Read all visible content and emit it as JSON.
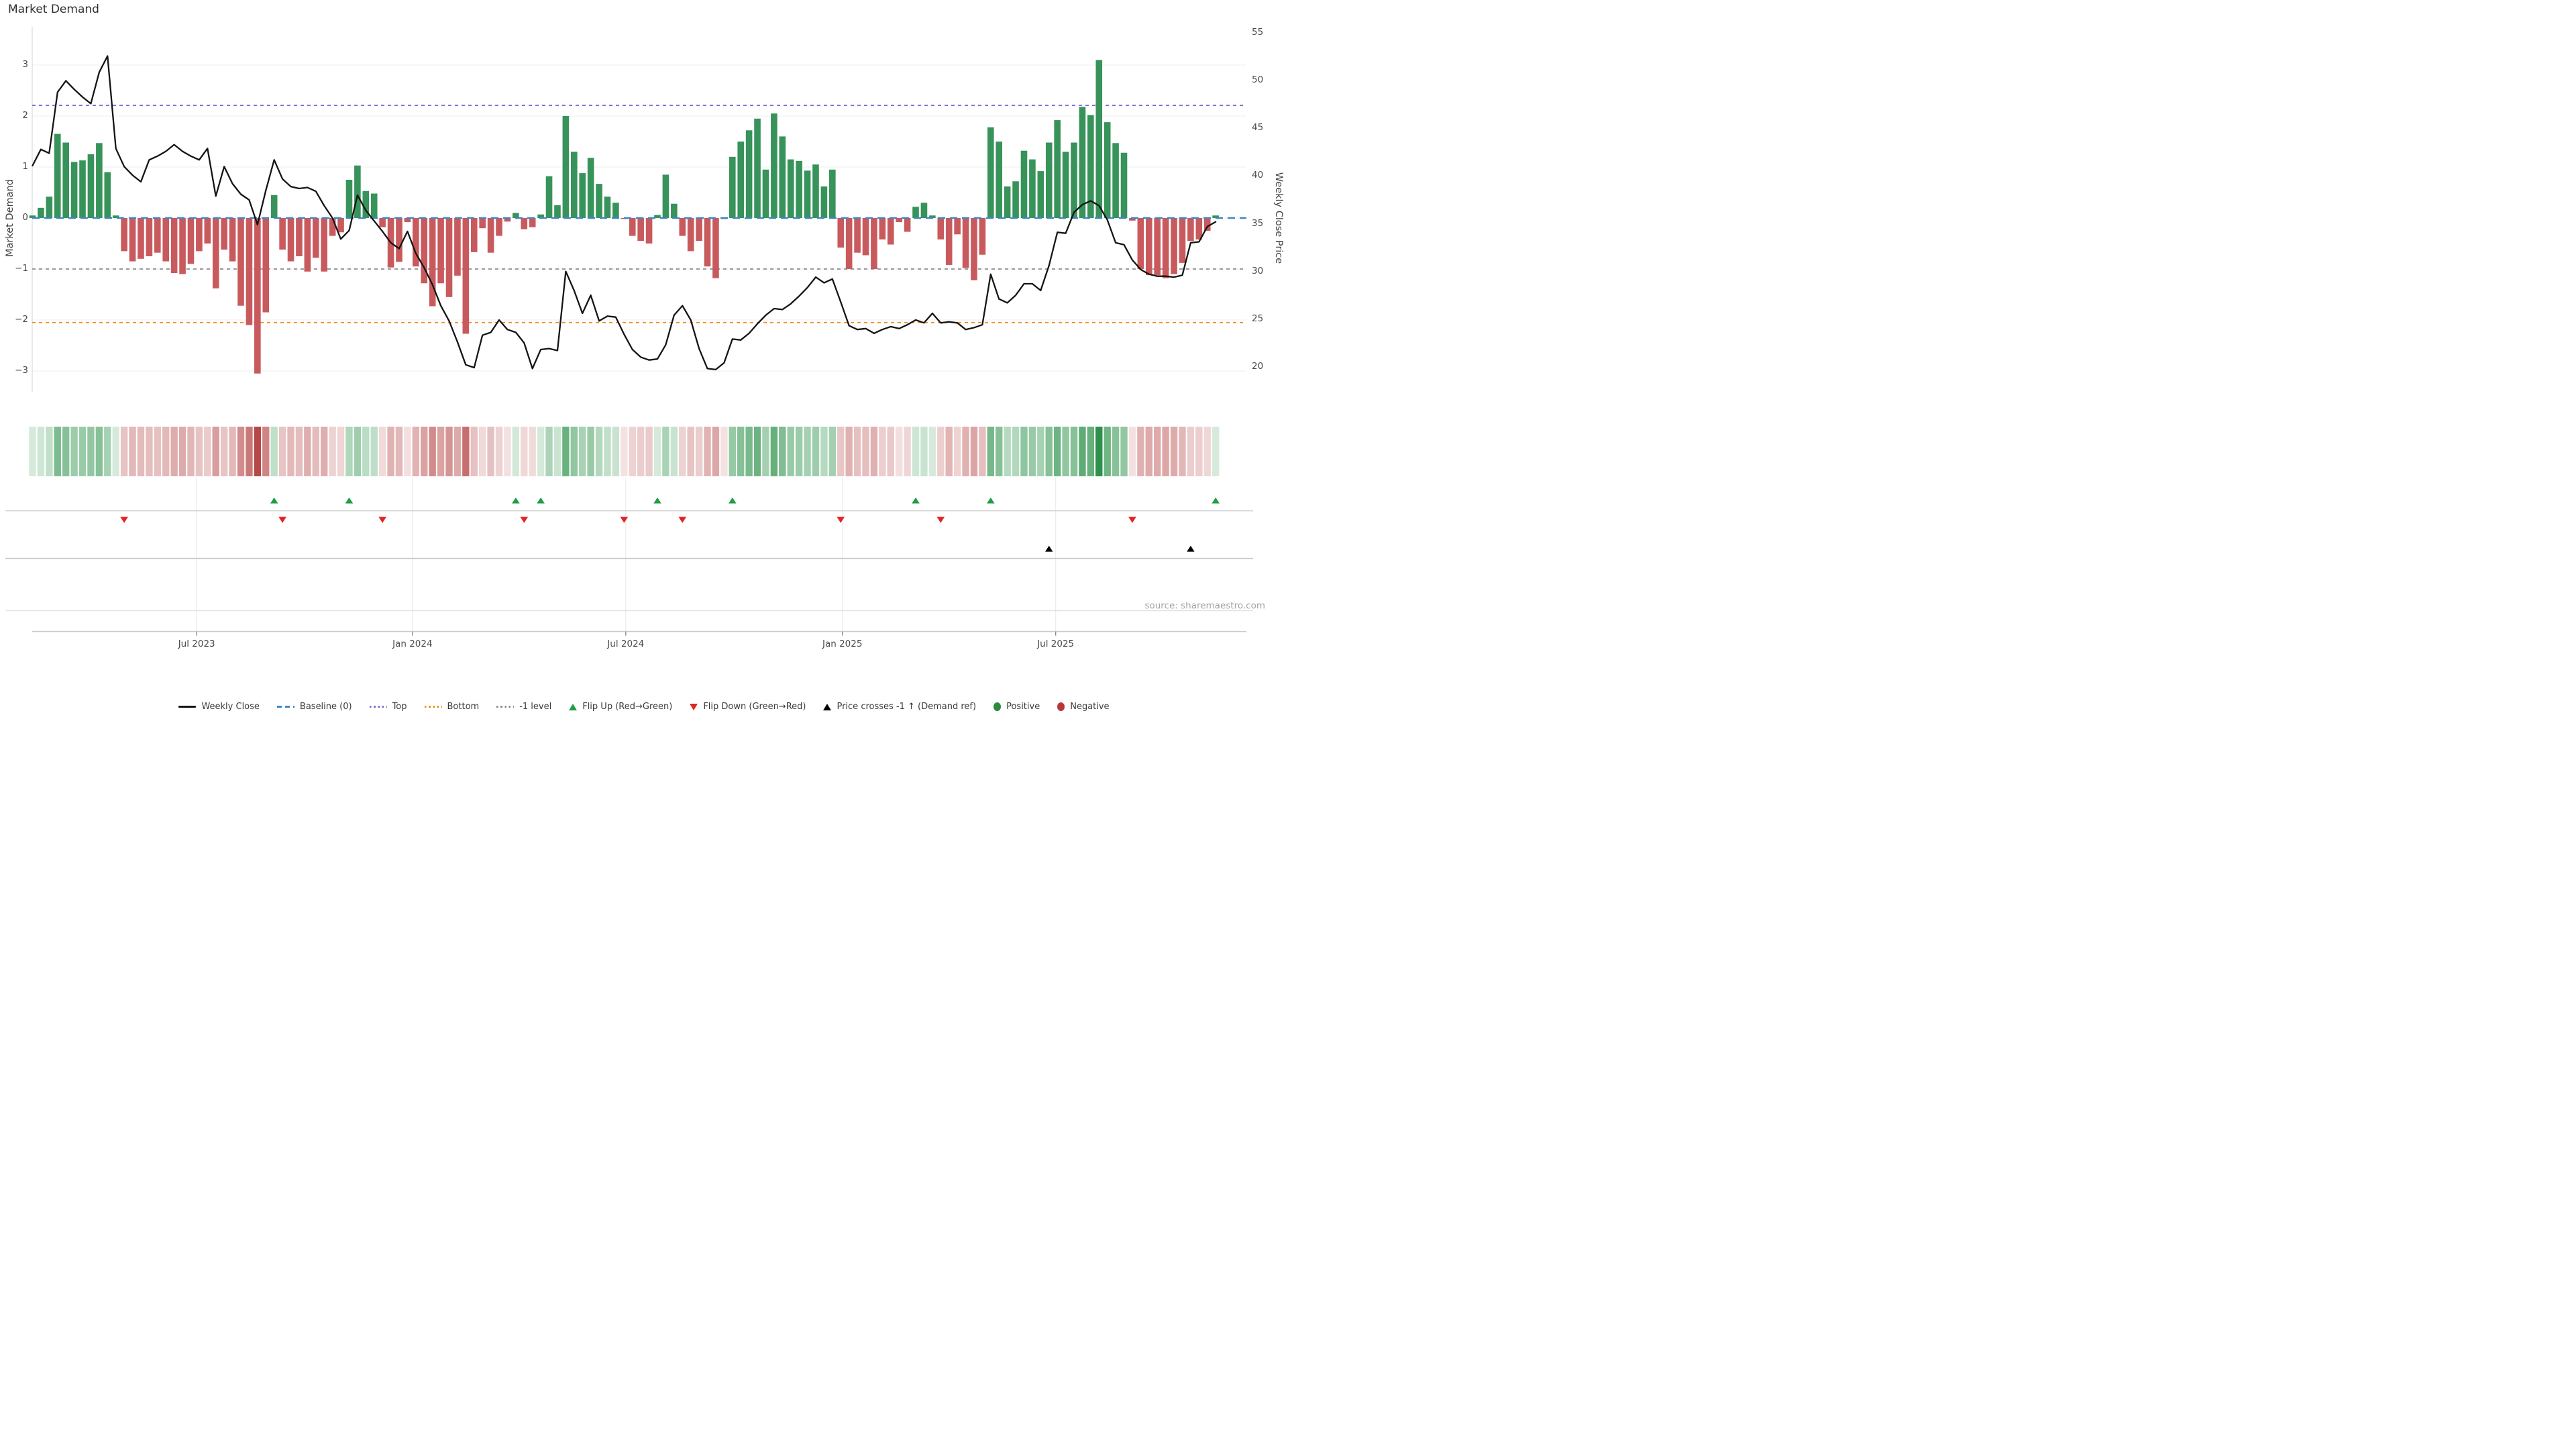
{
  "title": "Market Demand",
  "source": "source: sharemaestro.com",
  "axes": {
    "left_label": "Market Demand",
    "right_label": "Weekly Close Price",
    "left_ticks": [
      3,
      2,
      1,
      0,
      -1,
      -2,
      -3
    ],
    "right_ticks": [
      55,
      50,
      45,
      40,
      35,
      30,
      25,
      20
    ]
  },
  "colors": {
    "bar_positive": "#37935a",
    "bar_negative": "#c85a5e",
    "price_line": "#141414",
    "baseline": "#3f86c6",
    "top_level": "#7b72d8",
    "bottom_level": "#f08c1e",
    "minus_one_level": "#8c8c8c",
    "grid": "#f2f2f4",
    "flip_up_marker": "#1f9e46",
    "flip_down_marker": "#e02424",
    "price_cross_marker": "#000000",
    "heat_green_rgb": "44,146,74",
    "heat_red_rgb": "183,72,72"
  },
  "legend": [
    {
      "label": "Weekly Close",
      "swatch": "solid-line",
      "color": "#141414"
    },
    {
      "label": "Baseline (0)",
      "swatch": "dash-line",
      "color": "#3f86c6"
    },
    {
      "label": "Top",
      "swatch": "dot-line",
      "color": "#7b72d8"
    },
    {
      "label": "Bottom",
      "swatch": "dot-line",
      "color": "#f08c1e"
    },
    {
      "label": "-1 level",
      "swatch": "dot-line",
      "color": "#8c8c8c"
    },
    {
      "label": "Flip Up (Red→Green)",
      "swatch": "triangle-up",
      "color": "#1f9e46"
    },
    {
      "label": "Flip Down (Green→Red)",
      "swatch": "triangle-down",
      "color": "#e02424"
    },
    {
      "label": "Price crosses -1 ↑ (Demand ref)",
      "swatch": "triangle-up",
      "color": "#000000"
    },
    {
      "label": "Positive",
      "swatch": "circle",
      "color": "#2c8a3e"
    },
    {
      "label": "Negative",
      "swatch": "circle",
      "color": "#b9373c"
    }
  ],
  "chart_data": {
    "type": "bar+line",
    "weeks": 143,
    "ylim_demand": [
      -3.4,
      3.75
    ],
    "levels": {
      "baseline": 0,
      "top": 2.21,
      "bottom": -2.05,
      "minus_one": -1
    },
    "price_axis": {
      "at_zero": 35.6,
      "per_unit": 5.35
    },
    "x_ticks": [
      {
        "label": "Jul 2023",
        "week": 19.7
      },
      {
        "label": "Jan 2024",
        "week": 45.6
      },
      {
        "label": "Jul 2024",
        "week": 71.2
      },
      {
        "label": "Jan 2025",
        "week": 97.2
      },
      {
        "label": "Jul 2025",
        "week": 122.8
      }
    ],
    "demand": [
      0.05,
      0.2,
      0.42,
      1.65,
      1.48,
      1.1,
      1.13,
      1.25,
      1.47,
      0.9,
      0.05,
      -0.65,
      -0.85,
      -0.8,
      -0.75,
      -0.68,
      -0.85,
      -1.08,
      -1.1,
      -0.9,
      -0.65,
      -0.5,
      -1.38,
      -0.62,
      -0.85,
      -1.72,
      -2.1,
      -3.05,
      -1.85,
      0.45,
      -0.62,
      -0.85,
      -0.75,
      -1.05,
      -0.78,
      -1.05,
      -0.35,
      -0.28,
      0.75,
      1.03,
      0.53,
      0.48,
      -0.18,
      -0.97,
      -0.86,
      -0.08,
      -0.95,
      -1.28,
      -1.73,
      -1.28,
      -1.55,
      -1.13,
      -2.27,
      -0.67,
      -0.2,
      -0.68,
      -0.35,
      -0.07,
      0.1,
      -0.22,
      -0.18,
      0.07,
      0.82,
      0.25,
      2.0,
      1.3,
      0.88,
      1.18,
      0.67,
      0.42,
      0.3,
      -0.02,
      -0.35,
      -0.45,
      -0.5,
      0.06,
      0.85,
      0.28,
      -0.35,
      -0.65,
      -0.45,
      -0.95,
      -1.18,
      -0.02,
      1.2,
      1.5,
      1.72,
      1.95,
      0.95,
      2.05,
      1.6,
      1.15,
      1.12,
      0.93,
      1.05,
      0.62,
      0.95,
      -0.58,
      -1.0,
      -0.68,
      -0.73,
      -1.0,
      -0.42,
      -0.52,
      -0.08,
      -0.27,
      0.22,
      0.3,
      0.05,
      -0.42,
      -0.92,
      -0.32,
      -0.98,
      -1.22,
      -0.72,
      1.78,
      1.5,
      0.62,
      0.72,
      1.32,
      1.15,
      0.92,
      1.48,
      1.92,
      1.3,
      1.48,
      2.18,
      2.02,
      3.1,
      1.88,
      1.47,
      1.28,
      -0.05,
      -1.0,
      -1.12,
      -1.12,
      -1.18,
      -1.1,
      -0.88,
      -0.45,
      -0.42,
      -0.25,
      0.05
    ],
    "price": [
      41.1,
      42.8,
      42.4,
      48.8,
      50.0,
      49.1,
      48.3,
      47.6,
      50.9,
      52.6,
      42.9,
      41.0,
      40.1,
      39.4,
      41.7,
      42.1,
      42.6,
      43.3,
      42.6,
      42.1,
      41.7,
      42.9,
      37.9,
      41.0,
      39.2,
      38.1,
      37.5,
      34.9,
      38.5,
      41.7,
      39.7,
      38.9,
      38.7,
      38.8,
      38.4,
      36.9,
      35.6,
      33.4,
      34.3,
      38.0,
      36.4,
      35.3,
      34.2,
      33.0,
      32.4,
      34.2,
      31.9,
      30.4,
      28.6,
      26.4,
      24.8,
      22.6,
      20.2,
      19.9,
      23.3,
      23.6,
      24.9,
      23.9,
      23.6,
      22.5,
      19.8,
      21.8,
      21.9,
      21.7,
      30.0,
      28.0,
      25.6,
      27.5,
      24.8,
      25.3,
      25.2,
      23.4,
      21.8,
      21.0,
      20.7,
      20.8,
      22.3,
      25.4,
      26.4,
      24.9,
      21.9,
      19.8,
      19.7,
      20.4,
      22.9,
      22.8,
      23.5,
      24.5,
      25.4,
      26.1,
      26.0,
      26.6,
      27.4,
      28.3,
      29.4,
      28.8,
      29.2,
      26.8,
      24.3,
      23.9,
      24.0,
      23.5,
      23.9,
      24.2,
      24.0,
      24.4,
      24.9,
      24.6,
      25.6,
      24.6,
      24.7,
      24.6,
      23.9,
      24.1,
      24.4,
      29.7,
      27.1,
      26.7,
      27.5,
      28.7,
      28.7,
      28.0,
      30.6,
      34.1,
      34.0,
      36.2,
      37.0,
      37.4,
      36.9,
      35.4,
      33.0,
      32.8,
      31.2,
      30.2,
      29.7,
      29.5,
      29.5,
      29.4,
      29.6,
      33.0,
      33.1,
      34.7,
      35.2
    ],
    "flip_up_weeks": [
      29,
      38,
      58,
      61,
      75,
      84,
      106,
      115,
      142
    ],
    "flip_down_weeks": [
      11,
      30,
      42,
      59,
      71,
      78,
      97,
      109,
      132
    ],
    "price_cross_weeks": [
      122,
      139
    ]
  }
}
